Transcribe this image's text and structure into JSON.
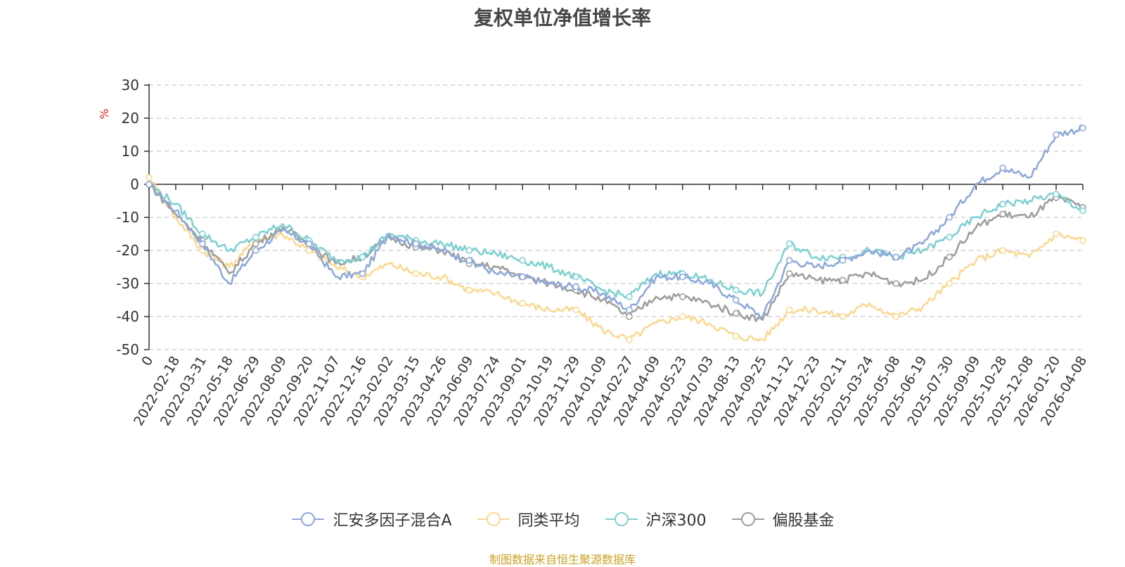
{
  "chart_data": {
    "type": "line",
    "title": "复权单位净值增长率",
    "ylabel": "%",
    "ylim": [
      -50,
      30
    ],
    "yticks": [
      "30",
      "20",
      "10",
      "0",
      "-10",
      "-20",
      "-30",
      "-40",
      "-50"
    ],
    "ytick_values": [
      30,
      20,
      10,
      0,
      -10,
      -20,
      -30,
      -40,
      -50
    ],
    "categories": [
      "0",
      "2022-02-18",
      "2022-03-31",
      "2022-05-18",
      "2022-06-29",
      "2022-08-09",
      "2022-09-20",
      "2022-11-07",
      "2022-12-16",
      "2023-02-02",
      "2023-03-15",
      "2023-04-26",
      "2023-06-09",
      "2023-07-24",
      "2023-09-01",
      "2023-10-19",
      "2023-11-29",
      "2024-01-09",
      "2024-02-27",
      "2024-04-09",
      "2024-05-23",
      "2024-07-03",
      "2024-08-13",
      "2024-09-25",
      "2024-11-12",
      "2024-12-23",
      "2025-02-11",
      "2025-03-24",
      "2025-05-08",
      "2025-06-19",
      "2025-07-30",
      "2025-09-09",
      "2025-10-28",
      "2025-12-08",
      "2026-01-20",
      "2026-04-08"
    ],
    "grid": "dashed horizontal",
    "legend_position": "bottom",
    "series": [
      {
        "name": "汇安多因子混合A",
        "color": "#8fa9d8",
        "values": [
          0,
          -8,
          -18,
          -30,
          -20,
          -14,
          -18,
          -28,
          -27,
          -15,
          -18,
          -20,
          -23,
          -27,
          -28,
          -30,
          -31,
          -33,
          -38,
          -28,
          -28,
          -30,
          -35,
          -40,
          -23,
          -25,
          -23,
          -20,
          -22,
          -18,
          -10,
          0,
          5,
          2,
          15,
          17
        ]
      },
      {
        "name": "同类平均",
        "color": "#fad993",
        "values": [
          2,
          -10,
          -20,
          -25,
          -17,
          -15,
          -20,
          -25,
          -28,
          -24,
          -27,
          -28,
          -32,
          -33,
          -36,
          -38,
          -38,
          -44,
          -47,
          -42,
          -40,
          -42,
          -46,
          -47,
          -38,
          -38,
          -40,
          -36,
          -40,
          -37,
          -30,
          -23,
          -20,
          -22,
          -15,
          -17
        ]
      },
      {
        "name": "沪深300",
        "color": "#80d0d1",
        "values": [
          0,
          -6,
          -15,
          -20,
          -16,
          -12,
          -17,
          -23,
          -22,
          -15,
          -17,
          -18,
          -20,
          -21,
          -23,
          -25,
          -28,
          -32,
          -34,
          -27,
          -27,
          -29,
          -32,
          -33,
          -18,
          -22,
          -22,
          -20,
          -22,
          -20,
          -16,
          -10,
          -6,
          -5,
          -3,
          -8
        ]
      },
      {
        "name": "偏股基金",
        "color": "#9e9e9e",
        "values": [
          0,
          -9,
          -17,
          -27,
          -18,
          -13,
          -18,
          -24,
          -22,
          -16,
          -19,
          -20,
          -24,
          -25,
          -28,
          -30,
          -32,
          -35,
          -40,
          -34,
          -34,
          -36,
          -39,
          -41,
          -27,
          -29,
          -29,
          -27,
          -30,
          -29,
          -22,
          -13,
          -9,
          -10,
          -4,
          -7
        ]
      }
    ]
  },
  "source_note": "制图数据来自恒生聚源数据库"
}
